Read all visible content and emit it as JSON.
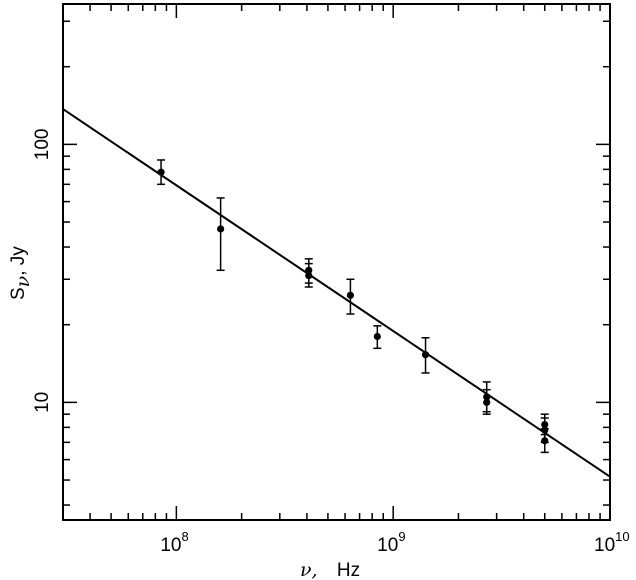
{
  "chart_data": {
    "type": "scatter",
    "x_scale": "log",
    "y_scale": "log",
    "xlim": [
      30000000,
      10000000000
    ],
    "ylim": [
      3.5,
      350
    ],
    "x_ticks": [
      {
        "value": 100000000,
        "base": "10",
        "exp": "8"
      },
      {
        "value": 1000000000,
        "base": "10",
        "exp": "9"
      },
      {
        "value": 10000000000,
        "base": "10",
        "exp": "10"
      }
    ],
    "y_ticks": [
      {
        "value": 10,
        "label": "10"
      },
      {
        "value": 100,
        "label": "100"
      }
    ],
    "xlabel": {
      "symbol": "ν,",
      "unit": "Hz"
    },
    "ylabel": {
      "symbol": "S",
      "sub": "ν",
      "unit": ",   Jy"
    },
    "points": [
      {
        "x": 85000000,
        "y": 78,
        "ylo": 70,
        "yhi": 87
      },
      {
        "x": 160000000,
        "y": 47,
        "ylo": 32.5,
        "yhi": 62
      },
      {
        "x": 408000000,
        "y": 32.5,
        "ylo": 29,
        "yhi": 36
      },
      {
        "x": 408000000,
        "y": 31,
        "ylo": 28,
        "yhi": 34.5
      },
      {
        "x": 635000000,
        "y": 26,
        "ylo": 22,
        "yhi": 30
      },
      {
        "x": 845000000,
        "y": 18,
        "ylo": 16.2,
        "yhi": 19.8
      },
      {
        "x": 1410000000,
        "y": 15.3,
        "ylo": 13,
        "yhi": 17.8
      },
      {
        "x": 2700000000,
        "y": 10.5,
        "ylo": 9.2,
        "yhi": 12
      },
      {
        "x": 2700000000,
        "y": 10,
        "ylo": 9,
        "yhi": 11.2
      },
      {
        "x": 5000000000,
        "y": 8.2,
        "ylo": 7.5,
        "yhi": 9
      },
      {
        "x": 5000000000,
        "y": 7.8,
        "ylo": 7,
        "yhi": 8.7
      },
      {
        "x": 5000000000,
        "y": 7.1,
        "ylo": 6.4,
        "yhi": 7.9
      }
    ],
    "fit_line": {
      "x": [
        30000000,
        10000000000
      ],
      "y": [
        137,
        5.15
      ]
    },
    "grid": false
  }
}
